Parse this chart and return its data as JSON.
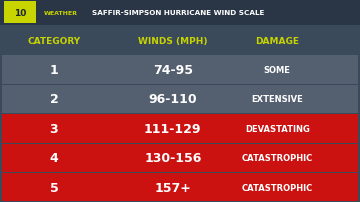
{
  "title_logo": "10 WEATHER",
  "title_text": "SAFFIR-SIMPSON HURRICANE WIND SCALE",
  "headers": [
    "CATEGORY",
    "WINDS (MPH)",
    "DAMAGE"
  ],
  "rows": [
    {
      "cat": "1",
      "winds": "74-95",
      "damage": "SOME",
      "bg": "#546070"
    },
    {
      "cat": "2",
      "winds": "96-110",
      "damage": "EXTENSIVE",
      "bg": "#546070"
    },
    {
      "cat": "3",
      "winds": "111-129",
      "damage": "DEVASTATING",
      "bg": "#cc1111"
    },
    {
      "cat": "4",
      "winds": "130-156",
      "damage": "CATASTROPHIC",
      "bg": "#cc1111"
    },
    {
      "cat": "5",
      "winds": "157+",
      "damage": "CATASTROPHIC",
      "bg": "#cc1111"
    }
  ],
  "bg_color": "#3a4a5a",
  "header_color": "#c8d400",
  "text_color": "#ffffff",
  "row_sep_color": "#ffffff",
  "top_bar_color": "#2a3a4a",
  "logo_bg": "#c8d400",
  "title_bar_bg": "#2a3545"
}
